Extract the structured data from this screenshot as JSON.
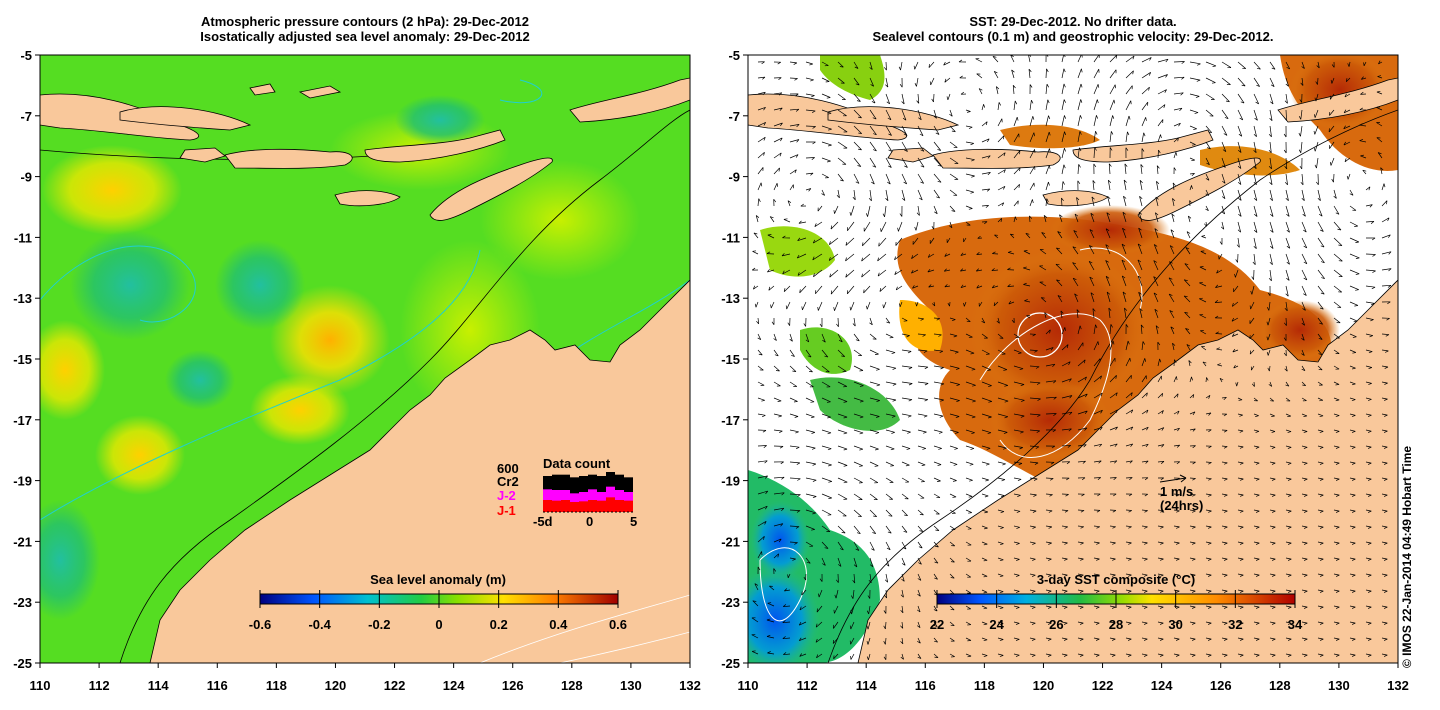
{
  "left_panel": {
    "title_line1": "Atmospheric pressure contours (2 hPa): 29-Dec-2012",
    "title_line2": "Isostatically adjusted sea level anomaly: 29-Dec-2012",
    "colorbar_label": "Sea level anomaly (m)",
    "colorbar_ticks": [
      "-0.6",
      "-0.4",
      "-0.2",
      "0",
      "0.2",
      "0.4",
      "0.6"
    ],
    "inset": {
      "title": "Data count",
      "max_label": "600",
      "series": [
        {
          "label": "Cr2",
          "color": "#000000"
        },
        {
          "label": "J-2",
          "color": "#ff00ff"
        },
        {
          "label": "J-1",
          "color": "#ff0000"
        }
      ],
      "axis_labels": [
        "-5d",
        "0",
        "5"
      ],
      "bar_counts": {
        "Cr2": [
          540,
          560,
          560,
          520,
          540,
          560,
          540,
          600,
          560,
          520
        ],
        "J-2": [
          340,
          330,
          330,
          280,
          300,
          340,
          300,
          380,
          330,
          300
        ],
        "J-1": [
          180,
          170,
          180,
          150,
          160,
          180,
          170,
          220,
          180,
          170
        ]
      }
    }
  },
  "right_panel": {
    "title_line1": "SST: 29-Dec-2012. No drifter data.",
    "title_line2": "Sealevel contours (0.1 m) and geostrophic velocity: 29-Dec-2012.",
    "colorbar_label": "3-day SST composite (°C)",
    "colorbar_ticks": [
      "22",
      "24",
      "26",
      "28",
      "30",
      "32",
      "34"
    ],
    "velocity_legend_line1": "1 m/s",
    "velocity_legend_line2": "(24hrs)"
  },
  "axes": {
    "lat_labels": [
      "-5",
      "-7",
      "-9",
      "-11",
      "-13",
      "-15",
      "-17",
      "-19",
      "-21",
      "-23",
      "-25"
    ],
    "lon_labels": [
      "110",
      "112",
      "114",
      "116",
      "118",
      "120",
      "122",
      "124",
      "126",
      "128",
      "130",
      "132"
    ]
  },
  "credit": "© IMOS 22-Jan-2014 04:49 Hobart Time",
  "colors": {
    "land": "#f9c89b",
    "sla_base": "#55dd22",
    "no_data": "#ffffff",
    "sst_hot": "#c0470a"
  }
}
